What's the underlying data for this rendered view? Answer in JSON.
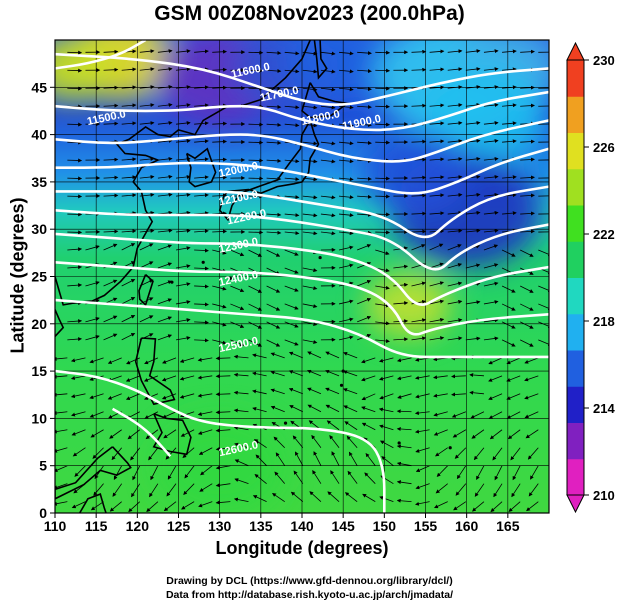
{
  "title": "GSM 00Z08Nov2023 (200.0hPa)",
  "xlabel": "Longitude (degrees)",
  "ylabel": "Latitude  (degrees)",
  "x_ticks": [
    "110",
    "115",
    "120",
    "125",
    "130",
    "135",
    "140",
    "145",
    "150",
    "155",
    "160",
    "165"
  ],
  "y_ticks": [
    "0",
    "5",
    "10",
    "15",
    "20",
    "25",
    "30",
    "35",
    "40",
    "45"
  ],
  "colorbar": {
    "ticks": [
      "210",
      "214",
      "218",
      "222",
      "226",
      "230"
    ],
    "range": [
      210,
      230
    ],
    "colors": [
      "#e020c0",
      "#8020c0",
      "#2020c8",
      "#2060e0",
      "#20b0f0",
      "#20d8c0",
      "#20d060",
      "#40e020",
      "#a0e020",
      "#e0e020",
      "#f0a020",
      "#f04020"
    ]
  },
  "contour_labels": [
    "11600.0",
    "11700.0",
    "11800.0",
    "11900.0",
    "12000.0",
    "12100.0",
    "12200.0",
    "12300.0",
    "12400.0",
    "12500.0",
    "11500.0",
    "12600.0"
  ],
  "credit_line1": "Drawing by DCL (https://www.gfd-dennou.org/library/dcl/)",
  "credit_line2": "Data from http://database.rish.kyoto-u.ac.jp/arch/jmadata/",
  "chart_data": {
    "type": "heatmap",
    "title": "GSM 00Z08Nov2023 (200.0hPa)",
    "xlabel": "Longitude (degrees)",
    "ylabel": "Latitude  (degrees)",
    "xlim": [
      110,
      170
    ],
    "ylim": [
      0,
      50
    ],
    "colorbar_range": [
      210,
      230
    ],
    "contour_interval": 100,
    "contours": [
      {
        "label": "11600.0",
        "pts": [
          [
            110,
            48.5
          ],
          [
            120,
            48
          ],
          [
            128,
            47
          ],
          [
            135,
            45
          ],
          [
            140,
            43.5
          ],
          [
            145,
            43
          ],
          [
            150,
            44
          ],
          [
            157,
            45.5
          ],
          [
            163,
            46.5
          ],
          [
            170,
            47
          ]
        ]
      },
      {
        "label": "11700.0",
        "pts": [
          [
            110,
            43
          ],
          [
            117,
            42.5
          ],
          [
            125,
            42.5
          ],
          [
            130,
            43
          ],
          [
            135,
            43
          ],
          [
            140,
            41.5
          ],
          [
            146,
            40.5
          ],
          [
            152,
            40.5
          ],
          [
            158,
            42
          ],
          [
            163,
            43.5
          ],
          [
            170,
            44.5
          ]
        ]
      },
      {
        "label": "11800.0",
        "pts": [
          [
            110,
            39.5
          ],
          [
            117,
            39
          ],
          [
            124,
            39.5
          ],
          [
            130,
            40
          ],
          [
            135,
            40
          ],
          [
            140,
            39
          ],
          [
            146,
            37.5
          ],
          [
            152,
            37
          ],
          [
            156,
            38
          ],
          [
            162,
            40
          ],
          [
            170,
            41.5
          ]
        ]
      },
      {
        "label": "11900.0",
        "pts": [
          [
            110,
            36.5
          ],
          [
            117,
            36.5
          ],
          [
            124,
            37
          ],
          [
            130,
            37
          ],
          [
            136,
            36.5
          ],
          [
            142,
            35.5
          ],
          [
            148,
            34.5
          ],
          [
            154,
            33.5
          ],
          [
            159,
            35
          ],
          [
            164,
            37
          ],
          [
            170,
            38.5
          ]
        ]
      },
      {
        "label": "12000.0",
        "pts": [
          [
            110,
            34
          ],
          [
            118,
            34
          ],
          [
            126,
            34
          ],
          [
            131,
            34
          ],
          [
            136,
            33.5
          ],
          [
            143,
            32.5
          ],
          [
            150,
            31.5
          ],
          [
            155,
            28.5
          ],
          [
            158,
            31
          ],
          [
            163,
            33.5
          ],
          [
            170,
            34.5
          ]
        ]
      },
      {
        "label": "12100.0",
        "pts": [
          [
            110,
            32
          ],
          [
            118,
            31.5
          ],
          [
            126,
            31.5
          ],
          [
            132,
            31.5
          ],
          [
            138,
            31
          ],
          [
            145,
            30
          ],
          [
            151,
            29
          ],
          [
            156,
            25
          ],
          [
            159,
            27.5
          ],
          [
            164,
            29.5
          ],
          [
            170,
            30.5
          ]
        ]
      },
      {
        "label": "12200.0",
        "pts": [
          [
            110,
            29.5
          ],
          [
            118,
            29
          ],
          [
            126,
            28.5
          ],
          [
            132,
            28.5
          ],
          [
            139,
            28
          ],
          [
            146,
            27
          ],
          [
            151,
            25
          ],
          [
            154,
            21.5
          ],
          [
            157,
            23
          ],
          [
            163,
            25
          ],
          [
            170,
            26
          ]
        ]
      },
      {
        "label": "12300.0",
        "pts": [
          [
            110,
            26.5
          ],
          [
            118,
            26
          ],
          [
            126,
            25.5
          ],
          [
            133,
            25.5
          ],
          [
            140,
            25
          ],
          [
            147,
            24
          ],
          [
            151,
            22
          ],
          [
            153,
            18.5
          ],
          [
            156,
            19.5
          ],
          [
            162,
            20.5
          ],
          [
            170,
            21
          ]
        ]
      },
      {
        "label": "12400.0",
        "pts": [
          [
            110,
            22.5
          ],
          [
            118,
            22
          ],
          [
            126,
            21.5
          ],
          [
            133,
            21
          ],
          [
            141,
            20.5
          ],
          [
            147,
            19
          ],
          [
            152,
            16.5
          ],
          [
            158,
            16.5
          ],
          [
            164,
            16.5
          ],
          [
            170,
            16.5
          ]
        ]
      },
      {
        "label": "12500.0",
        "pts": [
          [
            110,
            15
          ],
          [
            115,
            14.5
          ],
          [
            120,
            13
          ],
          [
            124,
            11
          ],
          [
            128,
            9.5
          ],
          [
            135,
            9
          ],
          [
            142,
            9
          ],
          [
            148,
            8
          ],
          [
            150,
            5
          ],
          [
            150,
            0
          ]
        ]
      },
      {
        "label": "11500.0",
        "pts": [
          [
            110,
            47
          ],
          [
            114,
            47.5
          ],
          [
            118,
            48.5
          ],
          [
            121,
            50
          ]
        ]
      },
      {
        "label": "12600.0",
        "pts": [
          [
            117,
            11
          ],
          [
            120,
            9.5
          ],
          [
            122,
            8
          ],
          [
            124,
            6
          ]
        ]
      }
    ],
    "label_positions": [
      {
        "label": "11600.0",
        "lon": 131.5,
        "lat": 46
      },
      {
        "label": "11700.0",
        "lon": 135,
        "lat": 43.5
      },
      {
        "label": "11800.0",
        "lon": 140,
        "lat": 41
      },
      {
        "label": "11900.0",
        "lon": 145,
        "lat": 40.5
      },
      {
        "label": "11500.0",
        "lon": 114,
        "lat": 41
      },
      {
        "label": "12000.0",
        "lon": 130,
        "lat": 35.5
      },
      {
        "label": "12100.0",
        "lon": 130,
        "lat": 32.5
      },
      {
        "label": "12200.0",
        "lon": 131,
        "lat": 30.5
      },
      {
        "label": "12300.0",
        "lon": 130,
        "lat": 27.5
      },
      {
        "label": "12400.0",
        "lon": 130,
        "lat": 24
      },
      {
        "label": "12500.0",
        "lon": 130,
        "lat": 17
      },
      {
        "label": "12600.0",
        "lon": 130,
        "lat": 6
      }
    ],
    "fields": [
      {
        "lon": 118,
        "lat": 48,
        "r": 5,
        "color": "#e8e020"
      },
      {
        "lon": 112,
        "lat": 47,
        "r": 4,
        "color": "#c8e020"
      },
      {
        "lon": 130,
        "lat": 46,
        "r": 6,
        "color": "#6030c0"
      },
      {
        "lon": 138,
        "lat": 47,
        "r": 5,
        "color": "#3050d0"
      },
      {
        "lon": 144,
        "lat": 48,
        "r": 5,
        "color": "#2060e0"
      },
      {
        "lon": 158,
        "lat": 46,
        "r": 7,
        "color": "#30c8f0"
      },
      {
        "lon": 165,
        "lat": 47,
        "r": 5,
        "color": "#40b0e8"
      },
      {
        "lon": 162,
        "lat": 42,
        "r": 6,
        "color": "#20c0f0"
      },
      {
        "lon": 160,
        "lat": 32,
        "r": 7,
        "color": "#2030c0"
      },
      {
        "lon": 154,
        "lat": 36,
        "r": 5,
        "color": "#2050d8"
      },
      {
        "lon": 153,
        "lat": 22,
        "r": 4,
        "color": "#c0e030"
      },
      {
        "lon": 130,
        "lat": 5,
        "r": 6,
        "color": "#30d840"
      }
    ]
  }
}
